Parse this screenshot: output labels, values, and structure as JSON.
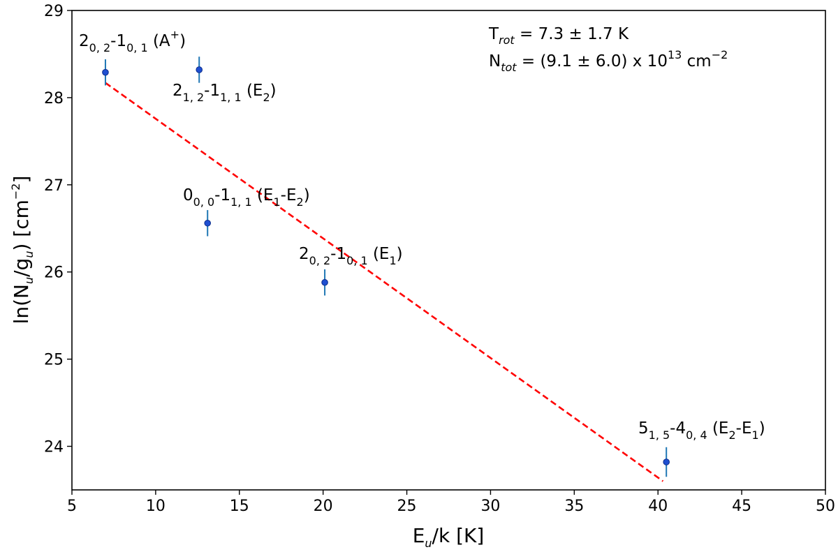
{
  "chart_data": {
    "type": "scatter",
    "xlim": [
      5,
      50
    ],
    "ylim": [
      23.5,
      29
    ],
    "xticks": [
      5,
      10,
      15,
      20,
      25,
      30,
      35,
      40,
      45,
      50
    ],
    "yticks": [
      24,
      25,
      26,
      27,
      28,
      29
    ],
    "xlabel": {
      "main": "E",
      "sub": "u",
      "rest": "/k [K]"
    },
    "ylabel": {
      "p1": "ln(N",
      "s1": "u",
      "p2": "/g",
      "s2": "u",
      "p3": ") [cm",
      "sup": "−2",
      "p4": "]"
    },
    "grid": false,
    "points": [
      {
        "x": 7.0,
        "y": 28.29,
        "err": 0.15
      },
      {
        "x": 12.6,
        "y": 28.32,
        "err": 0.15
      },
      {
        "x": 13.1,
        "y": 26.56,
        "err": 0.15
      },
      {
        "x": 20.1,
        "y": 25.88,
        "err": 0.15
      },
      {
        "x": 40.5,
        "y": 23.82,
        "err": 0.17
      }
    ],
    "point_labels": [
      {
        "q": "2",
        "sub1": "0, 2",
        "dash": "-1",
        "sub2": "0, 1",
        "state": " (A",
        "state_sup": "+",
        "close": ")"
      },
      {
        "q": "2",
        "sub1": "1, 2",
        "dash": "-1",
        "sub2": "1, 1",
        "state": " (E",
        "state_sub": "2",
        "close": ")"
      },
      {
        "q": "0",
        "sub1": "0, 0",
        "dash": "-1",
        "sub2": "1, 1",
        "state": " (E",
        "state_sub": "1",
        "mid": "-E",
        "mid_sub": "2",
        "close": ")"
      },
      {
        "q": "2",
        "sub1": "0, 2",
        "dash": "-1",
        "sub2": "0, 1",
        "state": " (E",
        "state_sub": "1",
        "close": ")"
      },
      {
        "q": "5",
        "sub1": "1, 5",
        "dash": "-4",
        "sub2": "0, 4",
        "state": " (E",
        "state_sub": "2",
        "mid": "-E",
        "mid_sub": "1",
        "close": ")"
      }
    ],
    "fit_line": {
      "x": [
        7.0,
        40.3
      ],
      "y": [
        28.17,
        23.6
      ]
    },
    "annotation": {
      "trot_main": "T",
      "trot_sub": "rot",
      "trot_rest": " = 7.3 ± 1.7 K",
      "ntot_main": "N",
      "ntot_sub": "tot",
      "ntot_rest": " = (9.1 ± 6.0) x 10",
      "ntot_exp": "13",
      "ntot_unit": " cm",
      "ntot_unit_exp": "−2"
    },
    "colors": {
      "marker_fill": "#1f4fd1",
      "marker_edge": "#0d2f8c",
      "errorbar": "#1f77b4",
      "fit_line": "#ff0000",
      "axes": "#000000"
    }
  }
}
